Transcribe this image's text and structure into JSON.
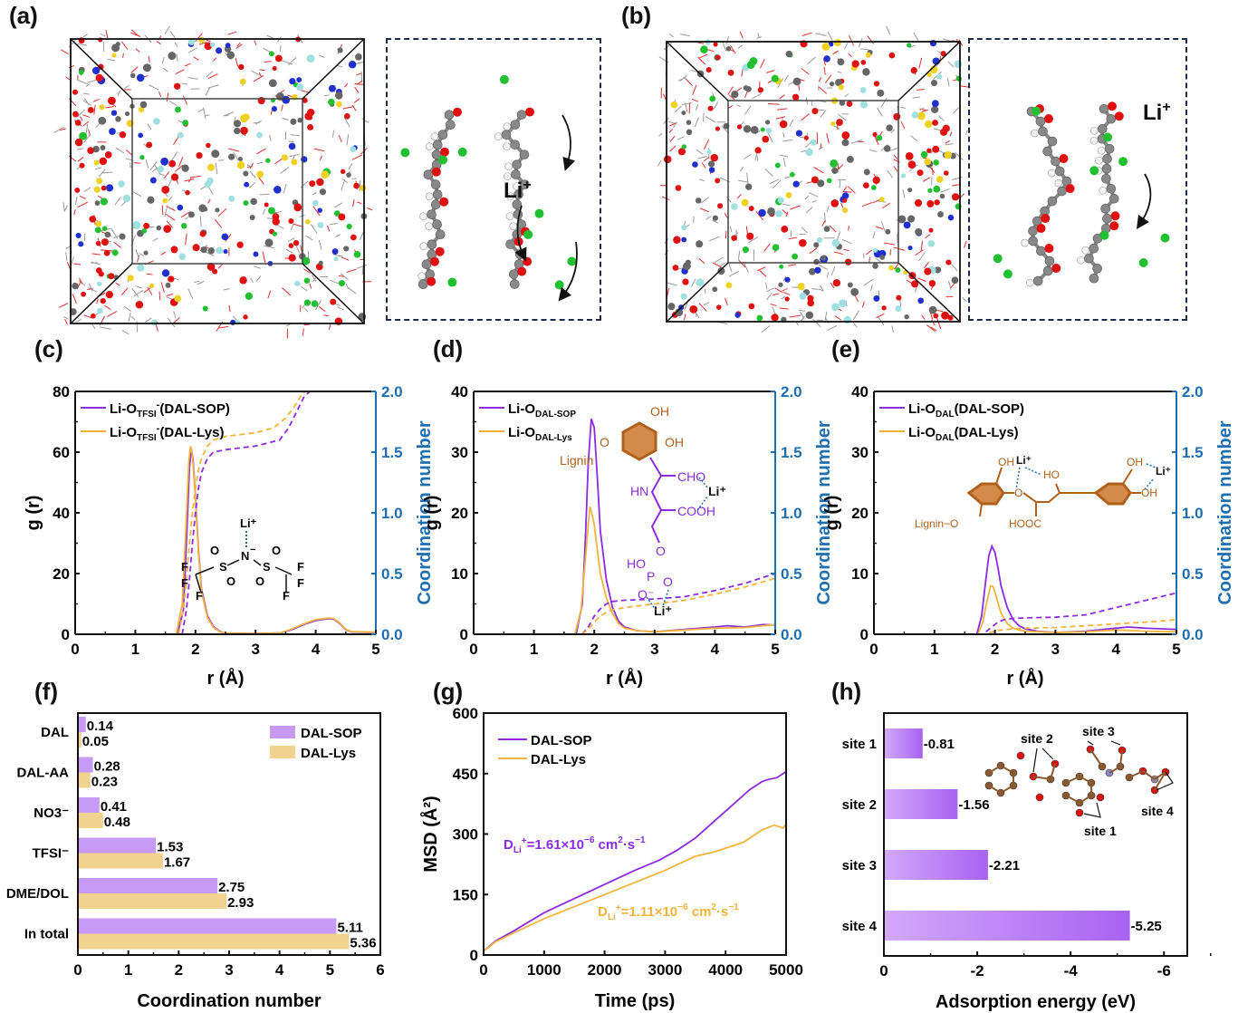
{
  "panels": {
    "a": {
      "label": "(a)",
      "zoom_ion": "Li",
      "zoom_ion_charge": "+"
    },
    "b": {
      "label": "(b)",
      "zoom_ion": "Li",
      "zoom_ion_charge": "+"
    },
    "c": {
      "label": "(c)"
    },
    "d": {
      "label": "(d)"
    },
    "e": {
      "label": "(e)"
    },
    "f": {
      "label": "(f)"
    },
    "g": {
      "label": "(g)"
    },
    "h": {
      "label": "(h)"
    }
  },
  "colors": {
    "sop": "#8b2be2",
    "lys": "#f0b43c",
    "right_axis": "#1f6fb0",
    "bar_sop": "#c79bf5",
    "bar_lys": "#f2d28f",
    "bar_h_start": "#d2a8fb",
    "bar_h_end": "#a862f2",
    "lignin": "#b0601a"
  },
  "chart_data": [
    {
      "id": "c",
      "type": "line",
      "xlabel": "r (Å)",
      "ylabel": "g (r)",
      "y2label": "Coordination number",
      "xlim": [
        0,
        5
      ],
      "ylim": [
        0,
        80
      ],
      "y2lim": [
        0,
        2.0
      ],
      "xticks": [
        "0",
        "1",
        "2",
        "3",
        "4",
        "5"
      ],
      "yticks": [
        "0",
        "20",
        "40",
        "60",
        "80"
      ],
      "y2ticks": [
        "0.0",
        "0.5",
        "1.0",
        "1.5",
        "2.0"
      ],
      "legend": [
        {
          "name": "Li-O",
          "sub": "TFSI",
          "sup": "-",
          "tail": "(DAL-SOP)",
          "series": "sop"
        },
        {
          "name": "Li-O",
          "sub": "TFSI",
          "sup": "-",
          "tail": "(DAL-Lys)",
          "series": "lys"
        }
      ],
      "legend_position": "top-left",
      "series": [
        {
          "name": "Li-O_TFSI-(DAL-SOP) g(r)",
          "color_key": "sop",
          "axis": "left",
          "dash": false,
          "x": [
            0,
            1.7,
            1.8,
            1.85,
            1.9,
            1.93,
            1.96,
            2.0,
            2.05,
            2.1,
            2.2,
            2.3,
            2.4,
            2.5,
            3.0,
            3.4,
            3.6,
            3.8,
            4.0,
            4.2,
            4.3,
            4.4,
            4.5,
            4.6,
            5.0
          ],
          "y": [
            0,
            0,
            8,
            30,
            55,
            61,
            58,
            45,
            28,
            15,
            6,
            2.5,
            1,
            0.3,
            0.2,
            0.4,
            1.5,
            3.2,
            4.5,
            5.1,
            5.0,
            3.5,
            1.5,
            0.8,
            0.6
          ]
        },
        {
          "name": "Li-O_TFSI-(DAL-Lys) g(r)",
          "color_key": "lys",
          "axis": "left",
          "dash": false,
          "x": [
            0,
            1.68,
            1.78,
            1.84,
            1.89,
            1.92,
            1.95,
            2.0,
            2.05,
            2.1,
            2.2,
            2.3,
            2.4,
            2.5,
            3.0,
            3.4,
            3.6,
            3.8,
            4.0,
            4.2,
            4.3,
            4.4,
            4.5,
            4.6,
            5.0
          ],
          "y": [
            0,
            0,
            10,
            35,
            57,
            62,
            59,
            44,
            27,
            14,
            5.5,
            2.2,
            0.9,
            0.3,
            0.2,
            0.4,
            1.7,
            3.4,
            4.8,
            5.3,
            5.2,
            3.7,
            1.6,
            0.9,
            0.7
          ]
        },
        {
          "name": "Li-O_TFSI-(DAL-SOP) CN",
          "color_key": "sop",
          "axis": "right",
          "dash": true,
          "x": [
            1.78,
            1.85,
            1.9,
            1.95,
            2.0,
            2.05,
            2.1,
            2.2,
            2.3,
            2.5,
            3.0,
            3.4,
            3.55,
            3.7,
            3.8,
            3.9
          ],
          "y": [
            0,
            0.2,
            0.45,
            0.75,
            1.0,
            1.2,
            1.33,
            1.45,
            1.5,
            1.52,
            1.55,
            1.6,
            1.7,
            1.85,
            1.95,
            2.0
          ]
        },
        {
          "name": "Li-O_TFSI-(DAL-Lys) CN",
          "color_key": "lys",
          "axis": "right",
          "dash": true,
          "x": [
            1.72,
            1.8,
            1.85,
            1.9,
            1.95,
            2.0,
            2.05,
            2.1,
            2.2,
            2.3,
            2.5,
            3.0,
            3.3,
            3.5,
            3.65,
            3.75,
            3.82
          ],
          "y": [
            0,
            0.2,
            0.45,
            0.75,
            1.0,
            1.2,
            1.35,
            1.45,
            1.55,
            1.6,
            1.63,
            1.66,
            1.7,
            1.78,
            1.88,
            1.96,
            2.0
          ]
        }
      ]
    },
    {
      "id": "d",
      "type": "line",
      "xlabel": "r (Å)",
      "ylabel": "g (r)",
      "y2label": "Coordination number",
      "xlim": [
        0,
        5
      ],
      "ylim": [
        0,
        40
      ],
      "y2lim": [
        0,
        2.0
      ],
      "xticks": [
        "0",
        "1",
        "2",
        "3",
        "4",
        "5"
      ],
      "yticks": [
        "0",
        "10",
        "20",
        "30",
        "40"
      ],
      "y2ticks": [
        "0.0",
        "0.5",
        "1.0",
        "1.5",
        "2.0"
      ],
      "legend": [
        {
          "name": "Li-O",
          "sub": "DAL-SOP",
          "sup": "",
          "tail": "",
          "series": "sop"
        },
        {
          "name": "Li-O",
          "sub": "DAL-Lys",
          "sup": "",
          "tail": "",
          "series": "lys"
        }
      ],
      "legend_position": "top-left",
      "series": [
        {
          "name": "Li-O_DAL-SOP g(r)",
          "color_key": "sop",
          "axis": "left",
          "dash": false,
          "x": [
            0,
            1.7,
            1.8,
            1.85,
            1.9,
            1.95,
            2.0,
            2.05,
            2.1,
            2.2,
            2.3,
            2.4,
            2.5,
            2.7,
            3.0,
            3.5,
            4.0,
            4.2,
            4.5,
            4.8,
            5.0
          ],
          "y": [
            0,
            0,
            5,
            15,
            28,
            35.5,
            34,
            26,
            17,
            9,
            4.5,
            2.2,
            1.2,
            0.6,
            0.4,
            0.8,
            1.2,
            1.4,
            1.2,
            1.6,
            1.5
          ]
        },
        {
          "name": "Li-O_DAL-Lys g(r)",
          "color_key": "lys",
          "axis": "left",
          "dash": false,
          "x": [
            0,
            1.68,
            1.78,
            1.85,
            1.9,
            1.93,
            1.97,
            2.0,
            2.05,
            2.1,
            2.2,
            2.3,
            2.4,
            2.5,
            2.7,
            3.0,
            3.5,
            4.0,
            4.5,
            4.8,
            5.0
          ],
          "y": [
            0,
            0,
            4,
            12,
            18,
            21,
            19.5,
            18,
            14,
            10,
            6,
            3.5,
            1.8,
            1.0,
            0.6,
            0.4,
            0.7,
            1.0,
            1.1,
            1.4,
            1.6
          ]
        },
        {
          "name": "Li-O_DAL-SOP CN",
          "color_key": "sop",
          "axis": "right",
          "dash": true,
          "x": [
            1.8,
            1.9,
            2.0,
            2.1,
            2.2,
            2.3,
            2.5,
            3.0,
            3.5,
            4.0,
            4.5,
            5.0
          ],
          "y": [
            0,
            0.06,
            0.15,
            0.21,
            0.25,
            0.27,
            0.28,
            0.29,
            0.31,
            0.36,
            0.42,
            0.5
          ]
        },
        {
          "name": "Li-O_DAL-Lys CN",
          "color_key": "lys",
          "axis": "right",
          "dash": true,
          "x": [
            1.8,
            1.9,
            2.0,
            2.1,
            2.2,
            2.3,
            2.5,
            3.0,
            3.5,
            4.0,
            4.5,
            5.0
          ],
          "y": [
            0,
            0.04,
            0.1,
            0.15,
            0.18,
            0.2,
            0.22,
            0.25,
            0.28,
            0.33,
            0.39,
            0.46
          ]
        }
      ]
    },
    {
      "id": "e",
      "type": "line",
      "xlabel": "r (Å)",
      "ylabel": "g (r)",
      "y2label": "Coordination number",
      "xlim": [
        0,
        5
      ],
      "ylim": [
        0,
        40
      ],
      "y2lim": [
        0,
        2.0
      ],
      "xticks": [
        "0",
        "1",
        "2",
        "3",
        "4",
        "5"
      ],
      "yticks": [
        "0",
        "10",
        "20",
        "30",
        "40"
      ],
      "y2ticks": [
        "0.0",
        "0.5",
        "1.0",
        "1.5",
        "2.0"
      ],
      "legend": [
        {
          "name": "Li-O",
          "sub": "DAL",
          "sup": "",
          "tail": "(DAL-SOP)",
          "series": "sop"
        },
        {
          "name": "Li-O",
          "sub": "DAL",
          "sup": "",
          "tail": "(DAL-Lys)",
          "series": "lys"
        }
      ],
      "legend_position": "top-left",
      "series": [
        {
          "name": "Li-O_DAL(DAL-SOP) g(r)",
          "color_key": "sop",
          "axis": "left",
          "dash": false,
          "x": [
            0,
            1.7,
            1.78,
            1.85,
            1.9,
            1.95,
            2.0,
            2.05,
            2.1,
            2.2,
            2.3,
            2.4,
            2.5,
            2.7,
            3.0,
            3.5,
            4.0,
            4.2,
            4.5,
            5.0
          ],
          "y": [
            0,
            0,
            3,
            9,
            13,
            14.5,
            13.5,
            11,
            8,
            4.5,
            2.4,
            1.4,
            0.9,
            0.5,
            0.3,
            0.5,
            1.0,
            1.2,
            1.0,
            0.8
          ]
        },
        {
          "name": "Li-O_DAL(DAL-Lys) g(r)",
          "color_key": "lys",
          "axis": "left",
          "dash": false,
          "x": [
            0,
            1.72,
            1.8,
            1.87,
            1.93,
            1.97,
            2.0,
            2.05,
            2.1,
            2.2,
            2.3,
            2.4,
            2.5,
            3.0,
            3.5,
            4.0,
            4.5,
            5.0
          ],
          "y": [
            0,
            0,
            2,
            5.5,
            8,
            7.8,
            7,
            5.2,
            3.5,
            1.8,
            1.0,
            0.7,
            0.5,
            0.3,
            0.4,
            0.7,
            0.5,
            0.4
          ]
        },
        {
          "name": "Li-O_DAL(DAL-SOP) CN",
          "color_key": "sop",
          "axis": "right",
          "dash": true,
          "x": [
            1.85,
            1.95,
            2.05,
            2.15,
            2.3,
            2.5,
            3.0,
            3.5,
            4.0,
            4.5,
            5.0
          ],
          "y": [
            0.02,
            0.06,
            0.1,
            0.12,
            0.13,
            0.135,
            0.14,
            0.16,
            0.22,
            0.28,
            0.34
          ]
        },
        {
          "name": "Li-O_DAL(DAL-Lys) CN",
          "color_key": "lys",
          "axis": "right",
          "dash": true,
          "x": [
            1.9,
            2.0,
            2.1,
            2.3,
            2.5,
            3.0,
            3.5,
            4.0,
            4.5,
            5.0
          ],
          "y": [
            0.01,
            0.025,
            0.035,
            0.045,
            0.05,
            0.055,
            0.07,
            0.085,
            0.1,
            0.12
          ]
        }
      ]
    },
    {
      "id": "f",
      "type": "bar",
      "orientation": "horizontal",
      "xlabel": "Coordination number",
      "ylabel": "",
      "xlim": [
        0,
        6
      ],
      "xticks": [
        "0",
        "1",
        "2",
        "3",
        "4",
        "5",
        "6"
      ],
      "categories": [
        "DAL",
        "DAL-AA",
        "NO3⁻",
        "TFSI⁻",
        "DME/DOL",
        "In total"
      ],
      "series": [
        {
          "name": "DAL-SOP",
          "color_key": "bar_sop",
          "values": [
            0.14,
            0.28,
            0.41,
            1.53,
            2.75,
            5.11
          ],
          "labels": [
            "0.14",
            "0.28",
            "0.41",
            "1.53",
            "2.75",
            "5.11"
          ]
        },
        {
          "name": "DAL-Lys",
          "color_key": "bar_lys",
          "values": [
            0.05,
            0.23,
            0.48,
            1.67,
            2.93,
            5.36
          ],
          "labels": [
            "0.05",
            "0.23",
            "0.48",
            "1.67",
            "2.93",
            "5.36"
          ]
        }
      ],
      "legend_position": "top-right"
    },
    {
      "id": "g",
      "type": "line",
      "xlabel": "Time (ps)",
      "ylabel": "MSD (Å²)",
      "xlim": [
        0,
        5000
      ],
      "ylim": [
        0,
        600
      ],
      "xticks": [
        "0",
        "1000",
        "2000",
        "3000",
        "4000",
        "5000"
      ],
      "yticks": [
        "0",
        "150",
        "300",
        "450",
        "600"
      ],
      "legend": [
        {
          "name": "DAL-SOP",
          "series": "sop"
        },
        {
          "name": "DAL-Lys",
          "series": "lys"
        }
      ],
      "legend_position": "top-left",
      "annotations": [
        {
          "pre": "D",
          "sub": "Li",
          "sup": "+",
          "text": "=1.61×10",
          "exp": "−6",
          "unit": " cm",
          "unit_sup": "2",
          "tail": "·s",
          "tail_sup": "−1",
          "color_key": "sop"
        },
        {
          "pre": "D",
          "sub": "Li",
          "sup": "+",
          "text": "=1.11×10",
          "exp": "−6",
          "unit": " cm",
          "unit_sup": "2",
          "tail": "·s",
          "tail_sup": "−1",
          "color_key": "lys"
        }
      ],
      "series": [
        {
          "name": "DAL-SOP",
          "color_key": "sop",
          "x": [
            0,
            200,
            500,
            1000,
            1500,
            2000,
            2500,
            2900,
            3200,
            3500,
            3800,
            4100,
            4400,
            4600,
            4700,
            4850,
            4950,
            5000
          ],
          "y": [
            10,
            35,
            60,
            105,
            140,
            175,
            210,
            235,
            260,
            290,
            330,
            370,
            410,
            430,
            435,
            440,
            450,
            455
          ]
        },
        {
          "name": "DAL-Lys",
          "color_key": "lys",
          "x": [
            0,
            200,
            500,
            1000,
            1500,
            2000,
            2500,
            3000,
            3500,
            3800,
            4000,
            4300,
            4600,
            4800,
            4950,
            5000
          ],
          "y": [
            10,
            33,
            55,
            90,
            120,
            150,
            180,
            210,
            245,
            255,
            265,
            280,
            310,
            322,
            315,
            325
          ]
        }
      ]
    },
    {
      "id": "h",
      "type": "bar",
      "orientation": "horizontal",
      "xlabel": "Adsorption energy (eV)",
      "ylabel": "",
      "xlim": [
        0,
        -6.5
      ],
      "xticks": [
        "0",
        "-2",
        "-4",
        "-6"
      ],
      "xtick_values": [
        0,
        -2,
        -4,
        -6
      ],
      "categories": [
        "site 1",
        "site 2",
        "site 3",
        "site 4"
      ],
      "series": [
        {
          "name": "Adsorption energy",
          "color_key": "bar_h_end",
          "values": [
            -0.81,
            -1.56,
            -2.21,
            -5.25
          ],
          "labels": [
            "-0.81",
            "-1.56",
            "-2.21",
            "-5.25"
          ]
        }
      ],
      "inset_labels": [
        "site 2",
        "site 3",
        "site 4",
        "site 1"
      ]
    }
  ],
  "insets": {
    "c": {
      "li": "Li⁺",
      "n": "N",
      "n_charge": "−",
      "s": "S",
      "o": "O",
      "f": "F"
    },
    "d": {
      "oh1": "OH",
      "oh2": "OH",
      "o": "O",
      "lignin": "Lignin",
      "cho": "CHO",
      "hn": "HN",
      "cooh": "COOH",
      "o2": "O",
      "ho": "HO",
      "p": "P",
      "o3": "O",
      "o_minus": "O⁻",
      "li1": "Li⁺",
      "li2": "Li⁺"
    },
    "e": {
      "oh1": "OH",
      "li1": "Li⁺",
      "ho": "HO",
      "o": "O",
      "oh2": "OH",
      "li2": "Li⁺",
      "oh3": "OH",
      "lignin": "Lignin−O",
      "hooc": "HOOC"
    }
  }
}
